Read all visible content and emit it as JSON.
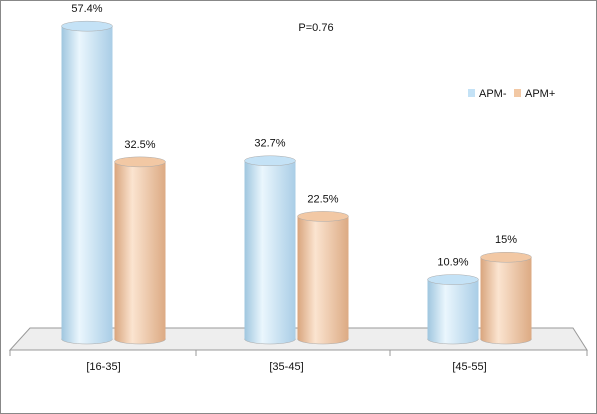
{
  "chart_data": {
    "type": "bar",
    "annotation": "P=0.76",
    "categories": [
      "[16-35]",
      "[35-45]",
      "[45-55]"
    ],
    "series": [
      {
        "name": "APM-",
        "color": "#c4e2f6",
        "values": [
          57.4,
          32.7,
          10.9
        ],
        "value_labels": [
          "57.4%",
          "32.7%",
          "10.9%"
        ]
      },
      {
        "name": "APM+",
        "color": "#f2c8a4",
        "values": [
          32.5,
          22.5,
          15
        ],
        "value_labels": [
          "32.5%",
          "22.5%",
          "15%"
        ]
      }
    ],
    "legend": "upper right"
  }
}
